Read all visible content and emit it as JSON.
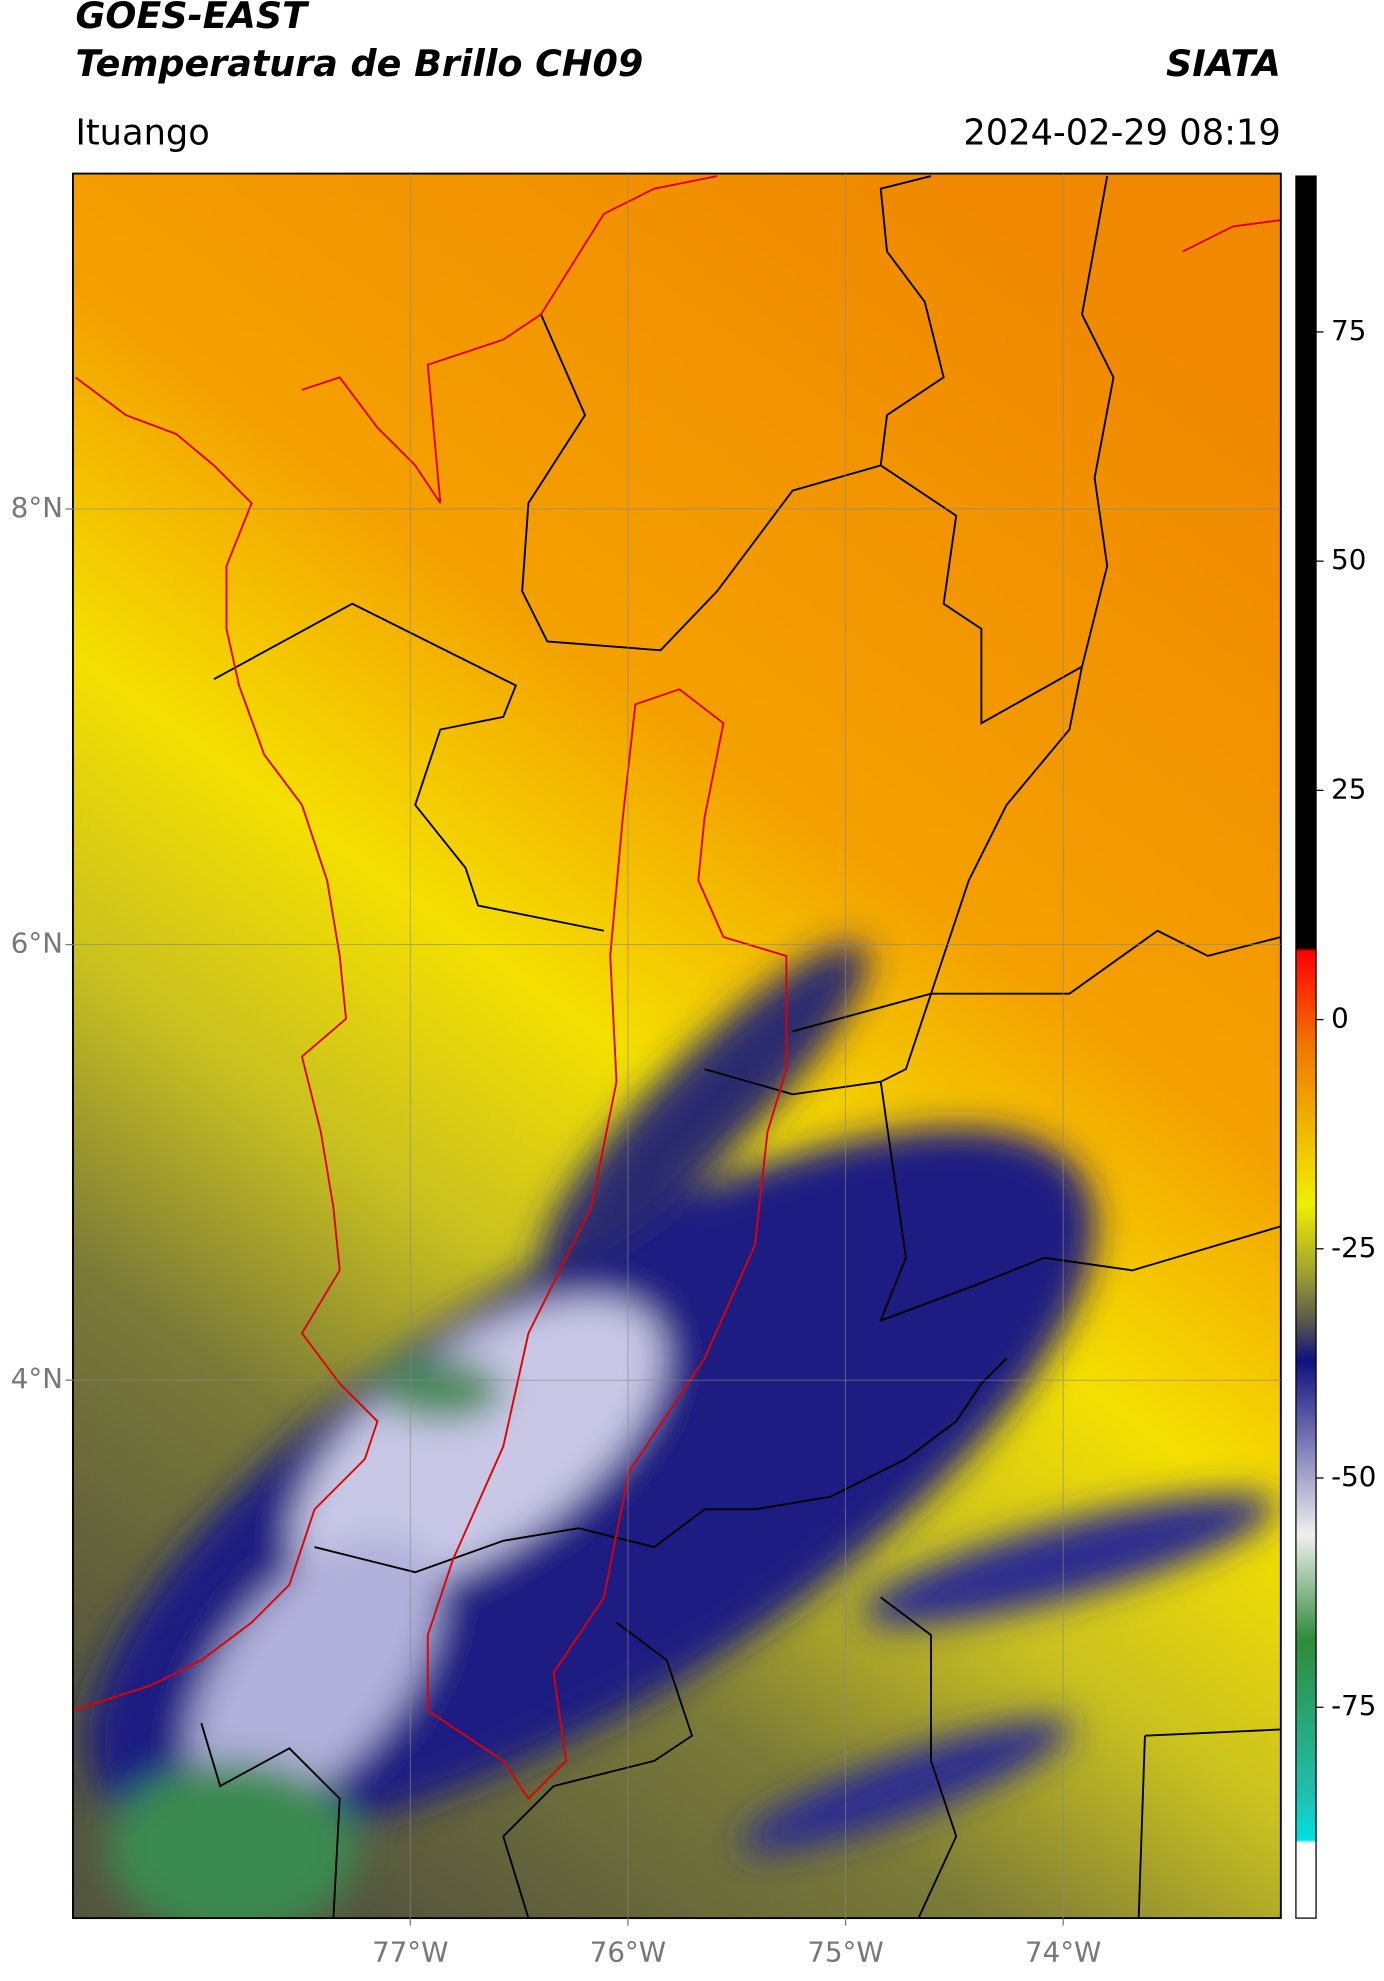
{
  "header": {
    "title": "GOES-EAST",
    "subtitle": "Temperatura de Brillo CH09",
    "brand": "SIATA",
    "location": "Ituango",
    "datetime": "2024-02-29 08:19"
  },
  "map": {
    "xlim": [
      -78.55,
      -73.0
    ],
    "ylim": [
      1.53,
      9.54
    ],
    "xticks": [
      {
        "value": -77,
        "label": "77°W"
      },
      {
        "value": -76,
        "label": "76°W"
      },
      {
        "value": -75,
        "label": "75°W"
      },
      {
        "value": -74,
        "label": "74°W"
      }
    ],
    "yticks": [
      {
        "value": 4,
        "label": "4°N"
      },
      {
        "value": 6,
        "label": "6°N"
      },
      {
        "value": 8,
        "label": "8°N"
      }
    ],
    "grid": true
  },
  "colorbar": {
    "lim": [
      -98,
      92
    ],
    "ticks": [
      -75,
      -50,
      -25,
      0,
      25,
      50,
      75
    ]
  }
}
